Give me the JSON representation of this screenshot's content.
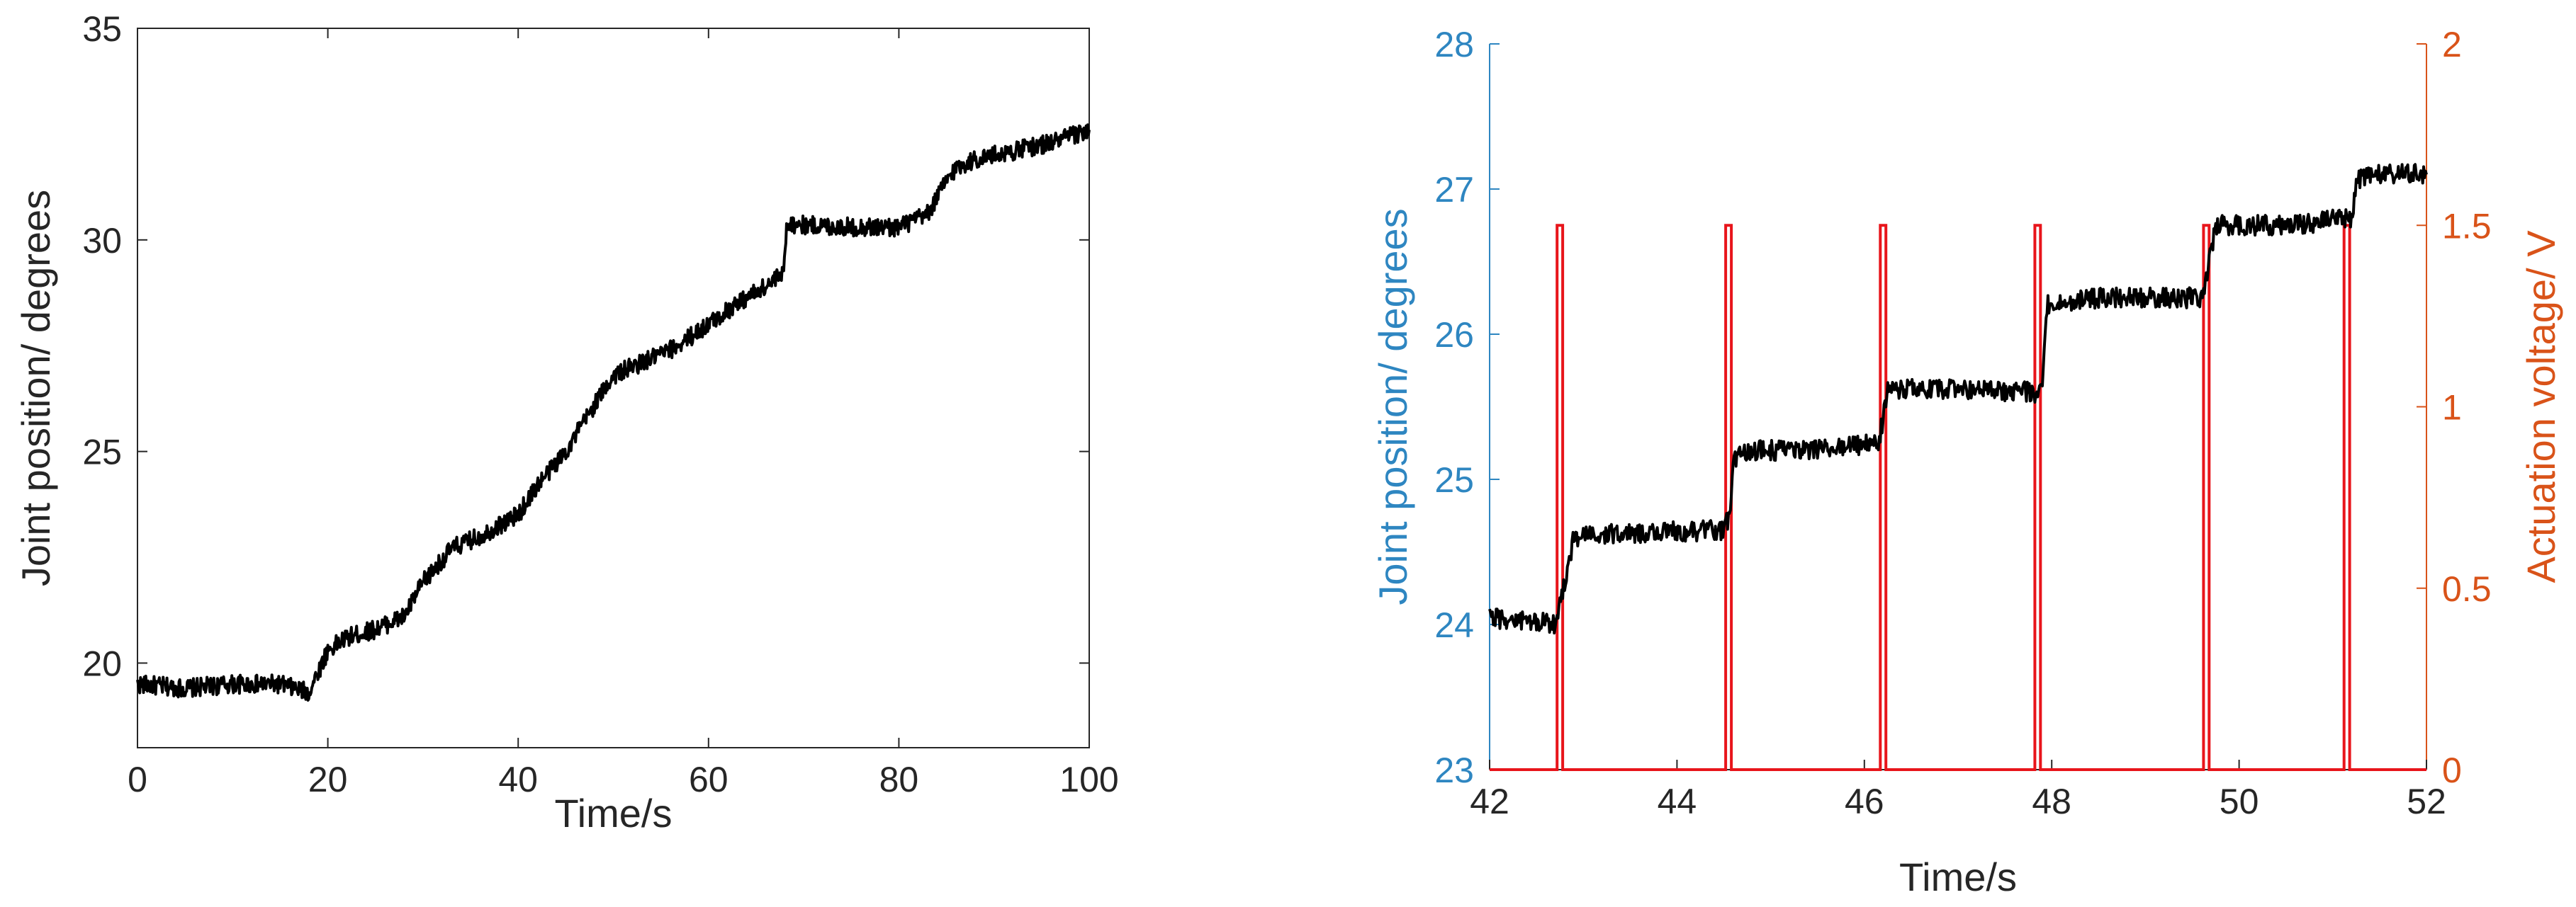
{
  "chart_data": [
    {
      "type": "line",
      "title": "",
      "xlabel": "Time/s",
      "ylabel": "Joint position/ degrees",
      "xlim": [
        0,
        100
      ],
      "ylim": [
        18,
        35
      ],
      "xticks": [
        "0",
        "20",
        "40",
        "60",
        "80",
        "100"
      ],
      "yticks": [
        "20",
        "25",
        "30",
        "35"
      ],
      "series": [
        {
          "color": "#000000",
          "x": [
            0,
            5,
            10,
            15,
            18,
            20,
            22,
            25,
            28,
            30,
            33,
            36,
            40,
            42,
            45,
            48,
            50,
            53,
            56,
            60,
            63,
            66,
            67.9,
            68.2,
            70,
            75,
            80,
            83,
            85,
            86,
            88,
            92,
            96,
            100
          ],
          "y": [
            19.5,
            19.4,
            19.5,
            19.5,
            19.3,
            20.3,
            20.6,
            20.8,
            21.1,
            21.9,
            22.7,
            23.0,
            23.5,
            24.2,
            25.0,
            26.1,
            26.8,
            27.1,
            27.4,
            28.0,
            28.5,
            28.9,
            29.2,
            30.4,
            30.35,
            30.3,
            30.3,
            30.6,
            31.4,
            31.7,
            31.9,
            32.1,
            32.3,
            32.6
          ]
        }
      ]
    },
    {
      "type": "line",
      "title": "",
      "xlabel": "Time/s",
      "ylabel": "Joint position/ degrees",
      "ylabel_right": "Actuation voltage/ V",
      "xlim": [
        42,
        52
      ],
      "ylim": [
        23,
        28
      ],
      "ylim_right": [
        0,
        2
      ],
      "xticks": [
        "42",
        "44",
        "46",
        "48",
        "50",
        "52"
      ],
      "yticks": [
        "23",
        "24",
        "25",
        "26",
        "27",
        "28"
      ],
      "yticks_right": [
        "0",
        "0.5",
        "1",
        "1.5",
        "2"
      ],
      "left_axis_color": "#2e86c1",
      "right_axis_color": "#d95319",
      "series": [
        {
          "axis": "left",
          "color": "#000000",
          "x": [
            42.0,
            42.7,
            42.8,
            42.9,
            43.5,
            44.5,
            44.56,
            44.6,
            44.7,
            45.5,
            46.15,
            46.25,
            46.3,
            47.0,
            47.8,
            47.9,
            47.95,
            48.5,
            49.6,
            49.7,
            49.75,
            50.5,
            51.2,
            51.25,
            51.35,
            52.0
          ],
          "y": [
            24.05,
            24.0,
            24.3,
            24.6,
            24.63,
            24.65,
            24.75,
            25.1,
            25.2,
            25.2,
            25.25,
            25.6,
            25.62,
            25.62,
            25.6,
            25.6,
            26.2,
            26.25,
            26.25,
            26.55,
            26.75,
            26.75,
            26.8,
            27.05,
            27.1,
            27.1
          ]
        },
        {
          "axis": "right",
          "color": "#e8151b",
          "pulse_times": [
            42.75,
            44.55,
            46.2,
            47.85,
            49.65,
            51.15
          ],
          "pulse_width": 0.06,
          "pulse_height": 1.5
        }
      ]
    }
  ]
}
